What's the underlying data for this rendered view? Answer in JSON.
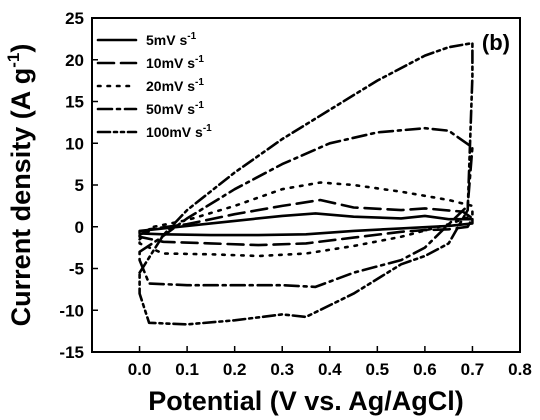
{
  "chart_data": {
    "type": "line",
    "panel_label": "(b)",
    "xlabel": "Potential (V vs. Ag/AgCl)",
    "ylabel": "Current density (A g",
    "ylabel_sup": "-1",
    "ylabel_close": ")",
    "xlim": [
      -0.1,
      0.8
    ],
    "ylim": [
      -15,
      25
    ],
    "xticks": [
      {
        "v": 0.0,
        "label": "0.0"
      },
      {
        "v": 0.1,
        "label": "0.1"
      },
      {
        "v": 0.2,
        "label": "0.2"
      },
      {
        "v": 0.3,
        "label": "0.3"
      },
      {
        "v": 0.4,
        "label": "0.4"
      },
      {
        "v": 0.5,
        "label": "0.5"
      },
      {
        "v": 0.6,
        "label": "0.6"
      },
      {
        "v": 0.7,
        "label": "0.7"
      },
      {
        "v": 0.8,
        "label": "0.8"
      }
    ],
    "yticks": [
      {
        "v": -15,
        "label": "-15"
      },
      {
        "v": -10,
        "label": "-10"
      },
      {
        "v": -5,
        "label": "-5"
      },
      {
        "v": 0,
        "label": "0"
      },
      {
        "v": 5,
        "label": "5"
      },
      {
        "v": 10,
        "label": "10"
      },
      {
        "v": 15,
        "label": "15"
      },
      {
        "v": 20,
        "label": "20"
      },
      {
        "v": 25,
        "label": "25"
      }
    ],
    "grid": false,
    "legend_position": "top-left",
    "series": [
      {
        "name": "5mV s",
        "name_sup": "-1",
        "dash": "solid",
        "x": [
          0.0,
          0.05,
          0.1,
          0.2,
          0.3,
          0.37,
          0.45,
          0.55,
          0.6,
          0.65,
          0.7,
          0.7,
          0.65,
          0.55,
          0.45,
          0.35,
          0.25,
          0.15,
          0.05,
          0.0
        ],
        "y": [
          -0.5,
          -0.2,
          0.1,
          0.7,
          1.3,
          1.6,
          1.2,
          1.0,
          1.3,
          0.9,
          0.9,
          0.4,
          0.1,
          -0.2,
          -0.5,
          -0.9,
          -1.0,
          -1.0,
          -0.9,
          -0.8
        ]
      },
      {
        "name": "10mV s",
        "name_sup": "-1",
        "dash": "long-dash",
        "x": [
          0.0,
          0.02,
          0.1,
          0.2,
          0.3,
          0.38,
          0.45,
          0.55,
          0.6,
          0.68,
          0.7,
          0.69,
          0.65,
          0.6,
          0.55,
          0.45,
          0.35,
          0.25,
          0.15,
          0.05,
          0.0
        ],
        "y": [
          -1.0,
          -0.3,
          0.3,
          1.5,
          2.5,
          3.2,
          2.3,
          2.0,
          2.2,
          1.8,
          1.0,
          0.0,
          -0.3,
          -0.4,
          -0.6,
          -1.3,
          -2.0,
          -2.2,
          -2.0,
          -1.8,
          -1.2
        ]
      },
      {
        "name": "20mV s",
        "name_sup": "-1",
        "dash": "dot",
        "x": [
          0.0,
          0.03,
          0.1,
          0.2,
          0.3,
          0.38,
          0.45,
          0.55,
          0.65,
          0.7,
          0.7,
          0.65,
          0.55,
          0.45,
          0.35,
          0.25,
          0.15,
          0.05,
          0.0
        ],
        "y": [
          -1.5,
          0.0,
          0.8,
          2.5,
          4.5,
          5.3,
          5.0,
          4.2,
          3.2,
          2.5,
          1.3,
          0.3,
          -1.2,
          -2.3,
          -3.2,
          -3.5,
          -3.3,
          -3.2,
          -2.0
        ]
      },
      {
        "name": "50mV s",
        "name_sup": "-1",
        "dash": "dash-dot",
        "x": [
          0.0,
          0.04,
          0.1,
          0.2,
          0.3,
          0.4,
          0.5,
          0.6,
          0.65,
          0.7,
          0.69,
          0.65,
          0.6,
          0.55,
          0.45,
          0.37,
          0.3,
          0.2,
          0.1,
          0.02,
          0.0
        ],
        "y": [
          -3.0,
          -1.5,
          1.0,
          4.5,
          7.5,
          10.0,
          11.3,
          11.8,
          11.5,
          9.5,
          2.5,
          0.3,
          -2.5,
          -4.0,
          -5.5,
          -7.2,
          -7.0,
          -7.0,
          -7.0,
          -6.8,
          -4.0
        ]
      },
      {
        "name": "100mV s",
        "name_sup": "-1",
        "dash": "dash-dot-dot",
        "x": [
          0.0,
          0.05,
          0.1,
          0.2,
          0.3,
          0.4,
          0.5,
          0.6,
          0.65,
          0.7,
          0.7,
          0.69,
          0.65,
          0.6,
          0.55,
          0.45,
          0.35,
          0.3,
          0.2,
          0.1,
          0.02,
          0.0
        ],
        "y": [
          -5.5,
          -1.0,
          2.0,
          6.5,
          10.5,
          14.0,
          17.5,
          20.5,
          21.5,
          22.0,
          18.0,
          2.0,
          -2.0,
          -3.5,
          -4.5,
          -8.0,
          -10.8,
          -10.5,
          -11.2,
          -11.7,
          -11.5,
          -8.0
        ]
      }
    ]
  }
}
